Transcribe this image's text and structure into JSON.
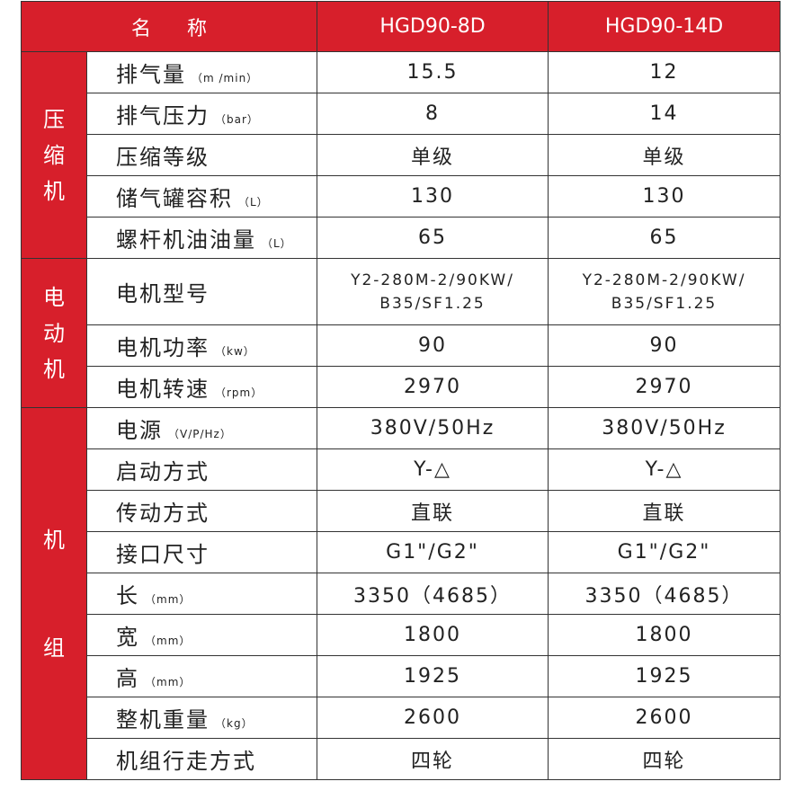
{
  "header": {
    "name": "名称",
    "models": [
      "HGD90-8D",
      "HGD90-14D"
    ]
  },
  "groups": [
    {
      "label": "压\n缩\n机",
      "rows": [
        {
          "label": "排气量",
          "unit": "（m  /min）",
          "values": [
            "15.5",
            "12"
          ]
        },
        {
          "label": "排气压力",
          "unit": "（bar）",
          "values": [
            "8",
            "14"
          ]
        },
        {
          "label": "压缩等级",
          "unit": "",
          "values": [
            "单级",
            "单级"
          ]
        },
        {
          "label": "储气罐容积",
          "unit": "（L）",
          "values": [
            "130",
            "130"
          ]
        },
        {
          "label": "螺杆机油油量",
          "unit": "（L）",
          "values": [
            "65",
            "65"
          ]
        }
      ]
    },
    {
      "label": "电\n动\n机",
      "rows": [
        {
          "label": "电机型号",
          "unit": "",
          "values": [
            "Y2-280M-2/90KW/\nB35/SF1.25",
            "Y2-280M-2/90KW/\nB35/SF1.25"
          ]
        },
        {
          "label": "电机功率",
          "unit": "（kw）",
          "values": [
            "90",
            "90"
          ]
        },
        {
          "label": "电机转速",
          "unit": "（rpm）",
          "values": [
            "2970",
            "2970"
          ]
        }
      ]
    },
    {
      "label": "机\n\n\n组",
      "rows": [
        {
          "label": "电源",
          "unit": "（V/P/Hz）",
          "values": [
            "380V/50Hz",
            "380V/50Hz"
          ]
        },
        {
          "label": "启动方式",
          "unit": "",
          "values": [
            "Y-△",
            "Y-△"
          ]
        },
        {
          "label": "传动方式",
          "unit": "",
          "values": [
            "直联",
            "直联"
          ]
        },
        {
          "label": "接口尺寸",
          "unit": "",
          "values": [
            "G1\"/G2\"",
            "G1\"/G2\""
          ]
        },
        {
          "label": "长",
          "unit": "（mm）",
          "values": [
            "3350（4685）",
            "3350（4685）"
          ]
        },
        {
          "label": "宽",
          "unit": "（mm）",
          "values": [
            "1800",
            "1800"
          ]
        },
        {
          "label": "高",
          "unit": "（mm）",
          "values": [
            "1925",
            "1925"
          ]
        },
        {
          "label": "整机重量",
          "unit": "（kg）",
          "values": [
            "2600",
            "2600"
          ]
        },
        {
          "label": "机组行走方式",
          "unit": "",
          "values": [
            "四轮",
            "四轮"
          ]
        }
      ]
    }
  ],
  "colors": {
    "accent": "#d71f2b"
  }
}
